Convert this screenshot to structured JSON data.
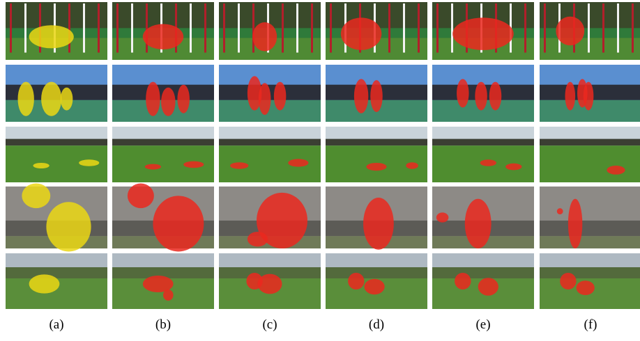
{
  "figure": {
    "labels": [
      "(a)",
      "(b)",
      "(c)",
      "(d)",
      "(e)",
      "(f)"
    ]
  }
}
